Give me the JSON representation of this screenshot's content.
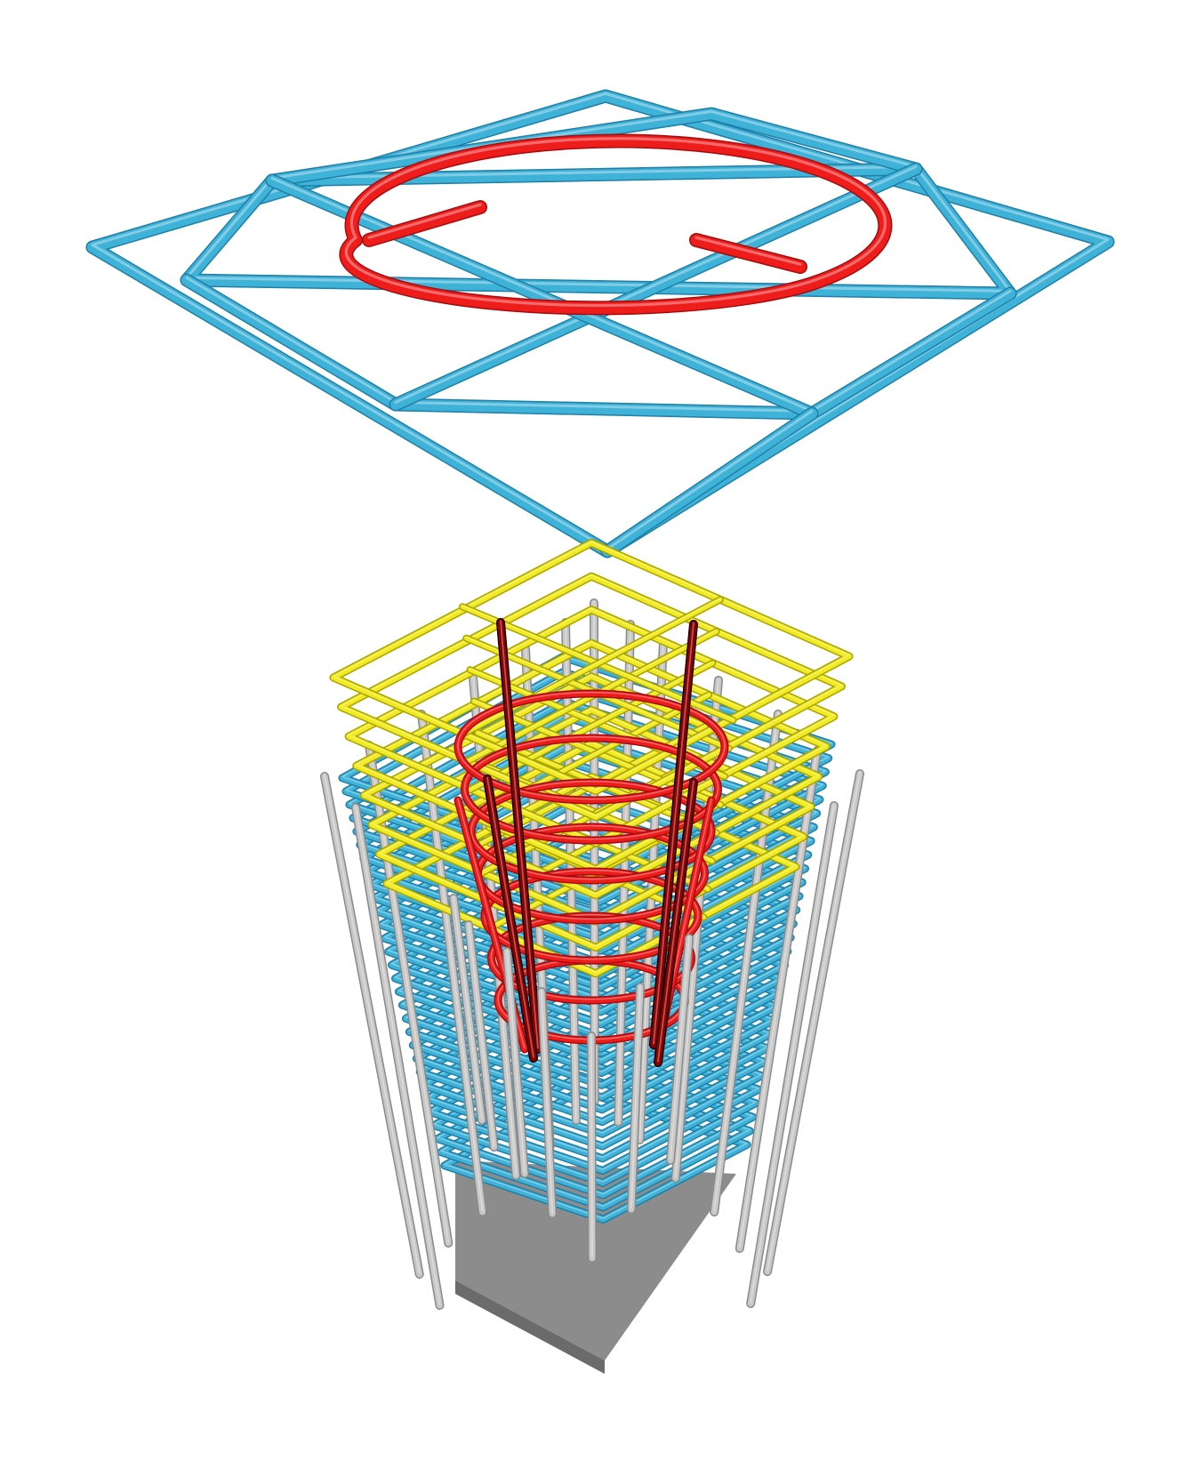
{
  "figure": {
    "panels": [
      {
        "id": "single-layer",
        "description_visible": false,
        "components": [
          "square-hoop",
          "cross-tie",
          "circular-spiral"
        ]
      },
      {
        "id": "column-cage",
        "description_visible": false,
        "components": [
          "outer-hoops",
          "inner-square-ties",
          "spiral",
          "longitudinal-bars",
          "corner-bars",
          "base-block"
        ]
      }
    ]
  },
  "colors": {
    "outer_hoop": "#3fb2d8",
    "outer_hoop_dark": "#1f7fa8",
    "spiral": "#ef1c1c",
    "spiral_dark": "#a50d0d",
    "inner_tie": "#f0ea1f",
    "inner_tie_dark": "#a9a300",
    "long_bar": "#c8c8c8",
    "long_bar_dark": "#8a8a8a",
    "corner_bar": "#8c0000",
    "corner_bar_dark": "#1a0000",
    "base": "#8c8c8c",
    "base_dark": "#6b6b6b"
  },
  "column": {
    "outer_hoop_count": 30,
    "inner_tie_count": 8,
    "spiral_turns": 7,
    "long_bars_per_side": 5,
    "corner_bar_count": 4
  }
}
